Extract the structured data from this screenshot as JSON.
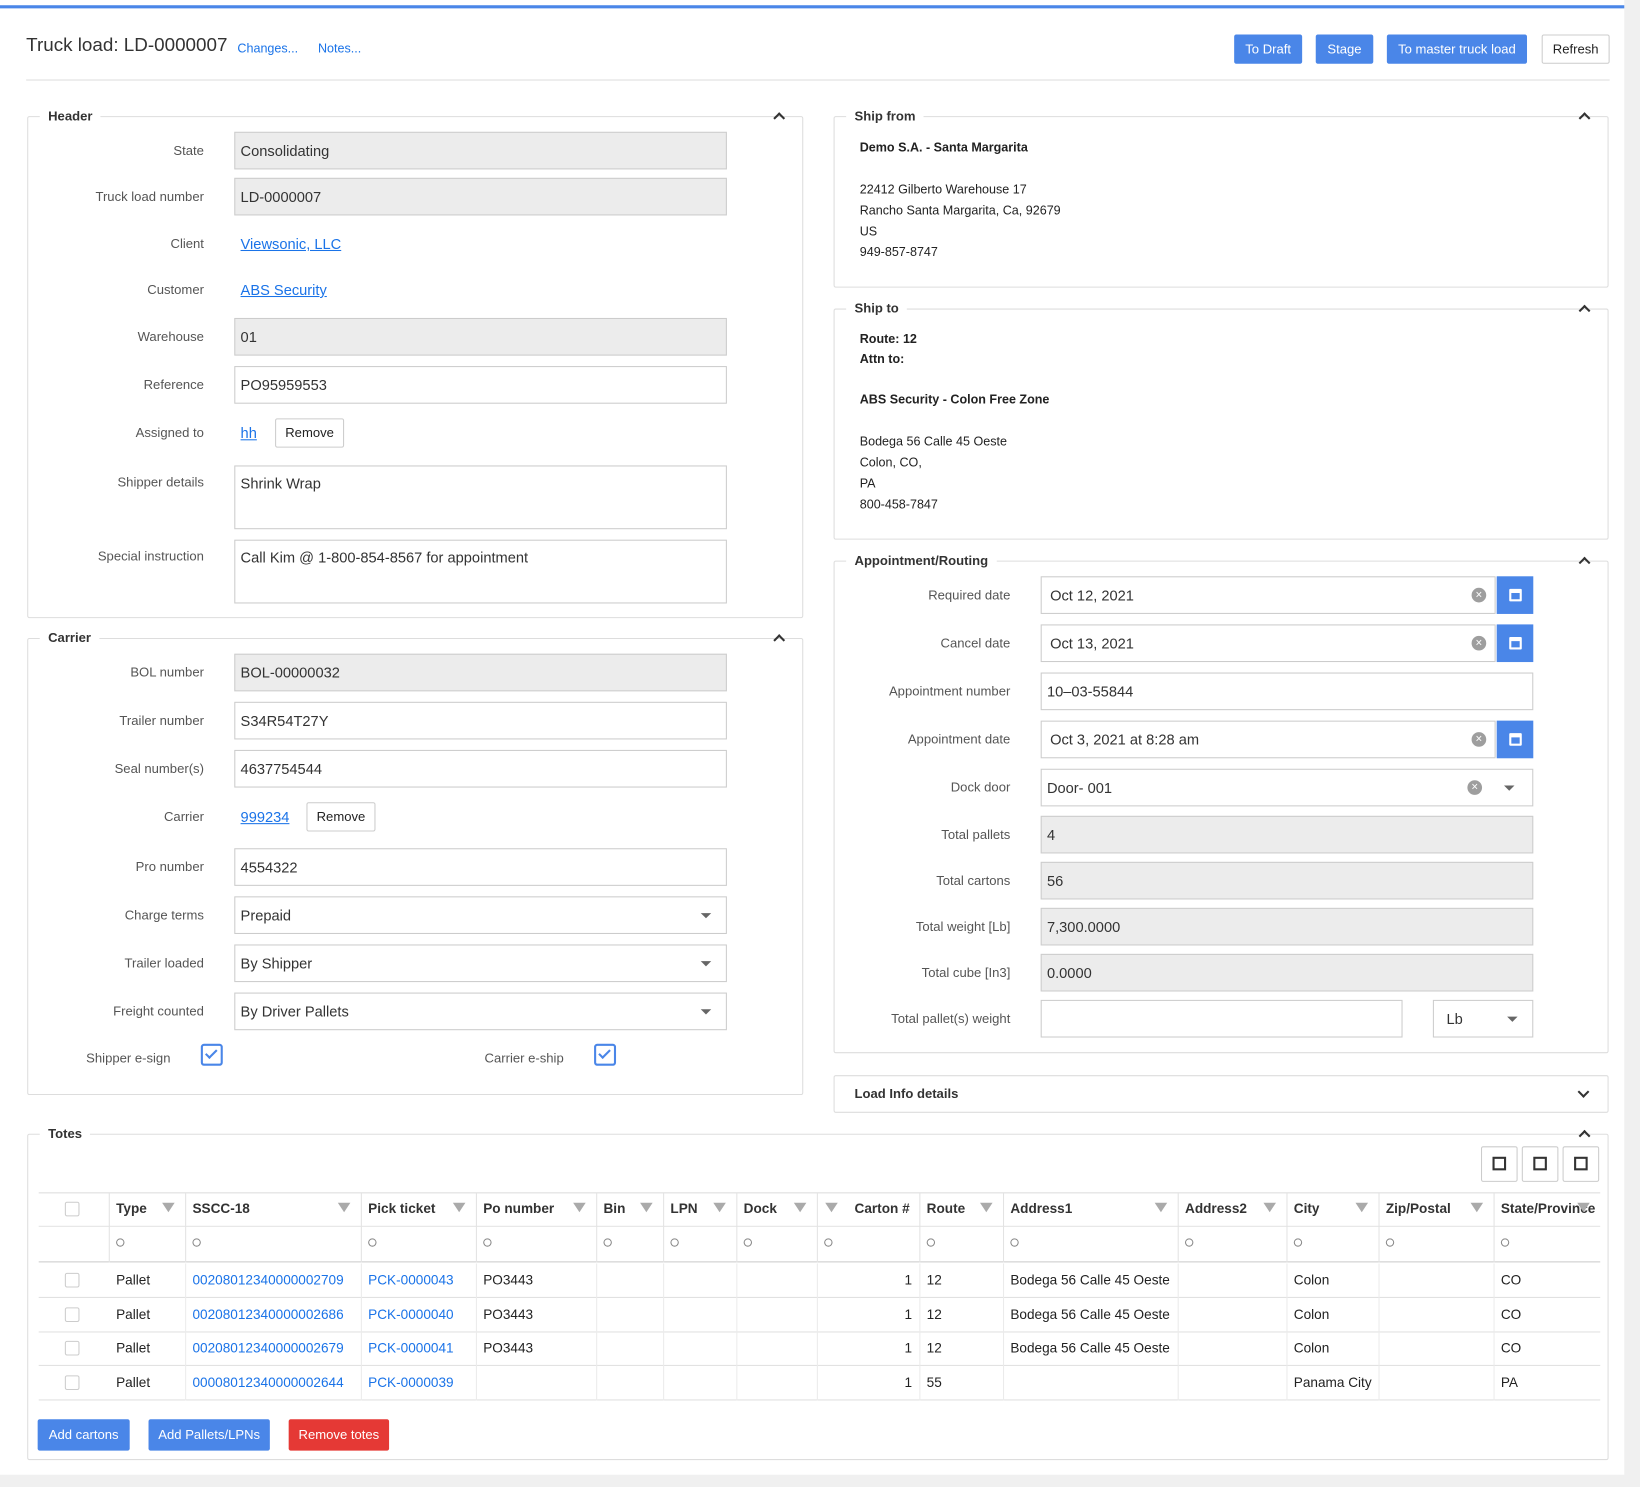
{
  "header": {
    "title": "Truck load: LD-0000007",
    "links": [
      "Changes...",
      "Notes..."
    ],
    "buttons": [
      "To Draft",
      "Stage",
      "To master truck load",
      "Refresh"
    ]
  },
  "header_panel": {
    "title": "Header",
    "fields": [
      {
        "label": "State",
        "value": "Consolidating"
      },
      {
        "label": "Truck load number",
        "value": "LD-0000007"
      },
      {
        "label": "Client",
        "value": "Viewsonic, LLC"
      },
      {
        "label": "Customer",
        "value": "ABS Security"
      },
      {
        "label": "Warehouse",
        "value": "01"
      },
      {
        "label": "Reference",
        "value": "PO95959553"
      },
      {
        "label": "Assigned to",
        "value": "hh",
        "button": "Remove"
      },
      {
        "label": "Shipper details",
        "value": "Shrink Wrap"
      },
      {
        "label": "Special instruction",
        "value": "Call Kim @ 1-800-854-8567 for appointment"
      }
    ]
  },
  "carrier_panel": {
    "title": "Carrier",
    "fields": [
      {
        "label": "BOL number",
        "value": "BOL-00000032"
      },
      {
        "label": "Trailer number",
        "value": "S34R54T27Y"
      },
      {
        "label": "Seal number(s)",
        "value": "4637754544"
      },
      {
        "label": "Carrier",
        "value": "999234",
        "button": "Remove"
      },
      {
        "label": "Pro number",
        "value": "4554322"
      },
      {
        "label": "Charge terms",
        "value": "Prepaid"
      },
      {
        "label": "Trailer loaded",
        "value": "By Shipper"
      },
      {
        "label": "Freight counted",
        "value": "By Driver Pallets"
      }
    ],
    "checkboxes": [
      {
        "label": "Shipper e-sign",
        "checked": true
      },
      {
        "label": "Carrier e-ship",
        "checked": true
      }
    ]
  },
  "ship_from": {
    "title": "Ship from",
    "name": "Demo S.A. - Santa Margarita",
    "address": [
      "22412 Gilberto Warehouse 17",
      "Rancho Santa Margarita, Ca, 92679",
      "US",
      "949-857-8747"
    ]
  },
  "ship_to": {
    "title": "Ship to",
    "route": "Route: 12",
    "attn": "Attn to:",
    "name": "ABS Security - Colon Free Zone",
    "address": [
      "Bodega 56 Calle 45 Oeste",
      "Colon, CO,",
      "PA",
      "800-458-7847"
    ]
  },
  "appointment": {
    "title": "Appointment/Routing",
    "fields": [
      {
        "label": "Required date",
        "value": "Oct 12, 2021"
      },
      {
        "label": "Cancel date",
        "value": "Oct 13, 2021"
      },
      {
        "label": "Appointment number",
        "value": "10–03-55844"
      },
      {
        "label": "Appointment date",
        "value": "Oct 3, 2021 at 8:28 am"
      },
      {
        "label": "Dock door",
        "value": "Door- 001"
      },
      {
        "label": "Total pallets",
        "value": "4"
      },
      {
        "label": "Total cartons",
        "value": "56"
      },
      {
        "label": "Total weight [Lb]",
        "value": "7,300.0000"
      },
      {
        "label": "Total cube [In3]",
        "value": "0.0000"
      },
      {
        "label": "Total pallet(s) weight",
        "unit": "Lb"
      }
    ]
  },
  "load_info": {
    "title": "Load Info details"
  },
  "totes": {
    "title": "Totes",
    "columns": [
      "Type",
      "SSCC-18",
      "Pick ticket",
      "Po number",
      "Bin",
      "LPN",
      "Dock",
      "Carton #",
      "Route",
      "Address1",
      "Address2",
      "City",
      "Zip/Postal",
      "State/Province"
    ],
    "rows": [
      [
        "Pallet",
        "00208012340000002709",
        "PCK-0000043",
        "PO3443",
        null,
        null,
        null,
        1,
        12,
        "Bodega 56 Calle 45 Oeste",
        null,
        "Colon",
        null,
        "CO"
      ],
      [
        "Pallet",
        "00208012340000002686",
        "PCK-0000040",
        "PO3443",
        null,
        null,
        null,
        1,
        12,
        "Bodega 56 Calle 45 Oeste",
        null,
        "Colon",
        null,
        "CO"
      ],
      [
        "Pallet",
        "00208012340000002679",
        "PCK-0000041",
        "PO3443",
        null,
        null,
        null,
        1,
        12,
        "Bodega 56 Calle 45 Oeste",
        null,
        "Colon",
        null,
        "CO"
      ],
      [
        "Pallet",
        "00008012340000002644",
        "PCK-0000039",
        null,
        null,
        null,
        null,
        1,
        55,
        null,
        null,
        "Panama City",
        null,
        "PA"
      ]
    ],
    "buttons": [
      "Add cartons",
      "Add Pallets/LPNs",
      "Remove totes"
    ]
  }
}
